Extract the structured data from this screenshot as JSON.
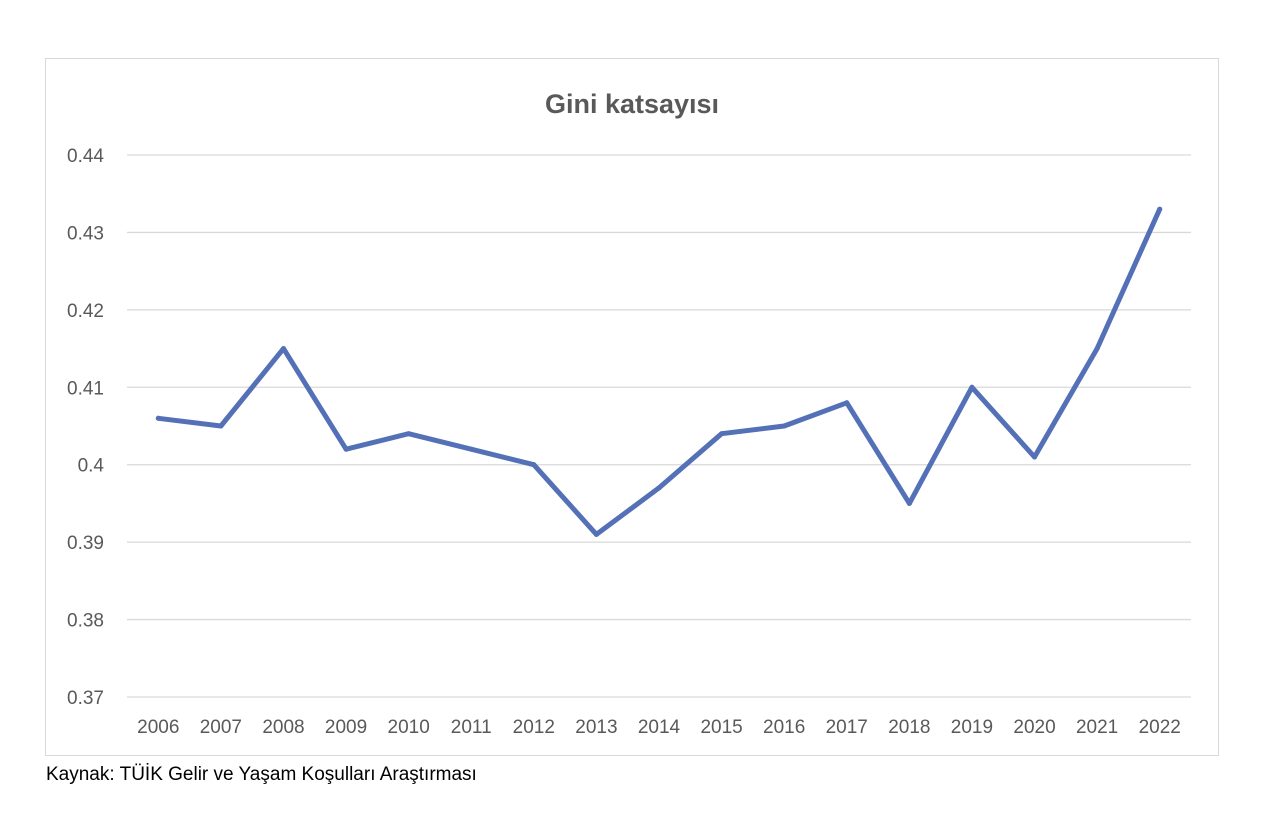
{
  "chart_data": {
    "type": "line",
    "title": "Gini katsayısı",
    "xlabel": "",
    "ylabel": "",
    "x": [
      "2006",
      "2007",
      "2008",
      "2009",
      "2010",
      "2011",
      "2012",
      "2013",
      "2014",
      "2015",
      "2016",
      "2017",
      "2018",
      "2019",
      "2020",
      "2021",
      "2022"
    ],
    "series": [
      {
        "values": [
          0.406,
          0.405,
          0.415,
          0.402,
          0.404,
          0.402,
          0.4,
          0.391,
          0.397,
          0.404,
          0.405,
          0.408,
          0.395,
          0.41,
          0.401,
          0.415,
          0.433
        ]
      }
    ],
    "ylim": [
      0.37,
      0.44
    ],
    "yticks": [
      "0.37",
      "0.38",
      "0.39",
      "0.4",
      "0.41",
      "0.42",
      "0.43",
      "0.44"
    ],
    "grid": true,
    "legend": "none",
    "line_color": "#5470b7"
  },
  "source_note": "Kaynak: TÜİK Gelir ve Yaşam Koşulları Araştırması"
}
